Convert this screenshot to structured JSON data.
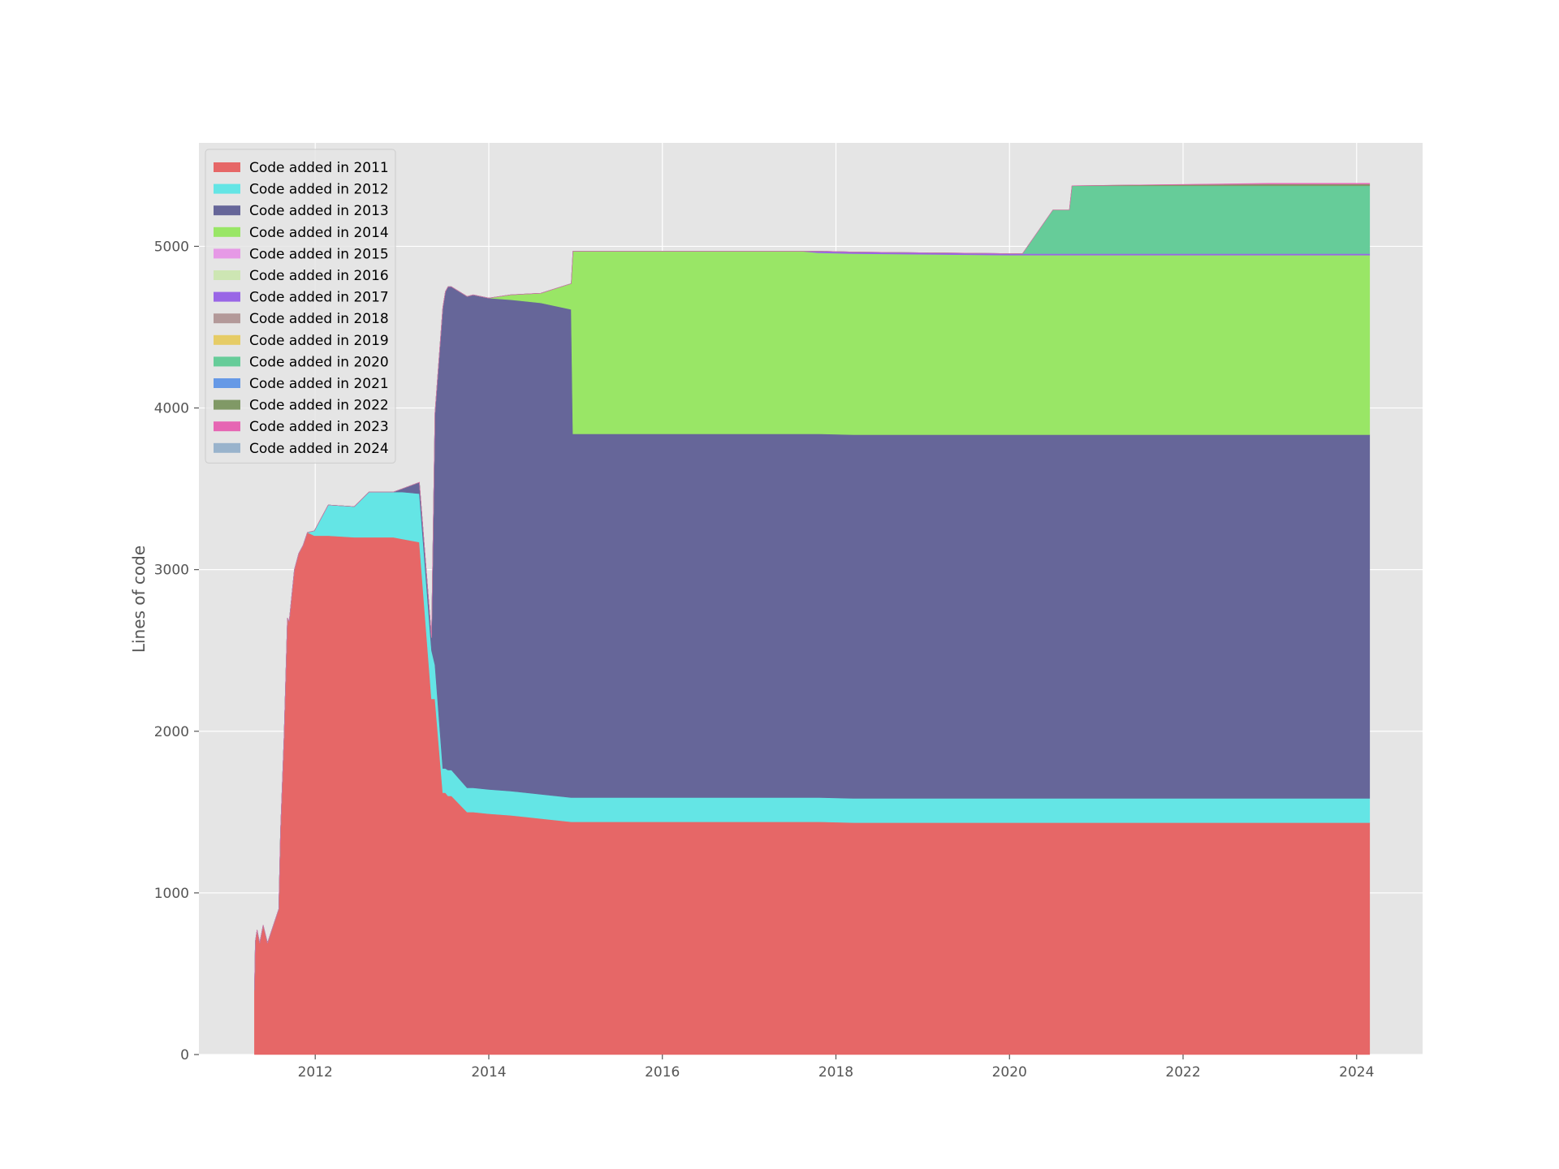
{
  "chart_data": {
    "type": "area",
    "stacked": true,
    "title": "",
    "xlabel": "",
    "ylabel": "Lines of code",
    "xlim": [
      2010.66,
      2024.76
    ],
    "ylim": [
      0,
      5640
    ],
    "xticks": [
      2012,
      2014,
      2016,
      2018,
      2020,
      2022,
      2024
    ],
    "xtick_labels": [
      "2012",
      "2014",
      "2016",
      "2018",
      "2020",
      "2022",
      "2024"
    ],
    "yticks": [
      0,
      1000,
      2000,
      3000,
      4000,
      5000
    ],
    "ytick_labels": [
      "0",
      "1000",
      "2000",
      "3000",
      "4000",
      "5000"
    ],
    "grid": true,
    "legend_position": "top-left",
    "background_color": "#e5e5e5",
    "x": [
      2011.3,
      2011.31,
      2011.33,
      2011.36,
      2011.4,
      2011.45,
      2011.58,
      2011.6,
      2011.64,
      2011.68,
      2011.7,
      2011.76,
      2011.81,
      2011.86,
      2011.91,
      2011.99,
      2012.15,
      2012.45,
      2012.62,
      2012.7,
      2012.9,
      2013.0,
      2013.2,
      2013.34,
      2013.38,
      2013.47,
      2013.5,
      2013.53,
      2013.57,
      2013.75,
      2013.82,
      2014.0,
      2014.25,
      2014.6,
      2014.95,
      2014.97,
      2016.0,
      2017.6,
      2017.8,
      2018.2,
      2020.0,
      2020.15,
      2020.5,
      2020.69,
      2020.72,
      2021.5,
      2023.0,
      2024.15
    ],
    "series": [
      {
        "name": "Code added in 2011",
        "color": "#e66767",
        "values": [
          400,
          700,
          770,
          690,
          800,
          690,
          900,
          1380,
          1950,
          2700,
          2680,
          3000,
          3100,
          3150,
          3230,
          3210,
          3210,
          3200,
          3200,
          3200,
          3200,
          3190,
          3170,
          2200,
          2200,
          1620,
          1620,
          1600,
          1600,
          1500,
          1500,
          1490,
          1480,
          1460,
          1440,
          1440,
          1440,
          1440,
          1440,
          1435,
          1435,
          1435,
          1435,
          1435,
          1435,
          1435,
          1435,
          1435
        ]
      },
      {
        "name": "Code added in 2012",
        "color": "#64e5e5",
        "values": [
          0,
          0,
          0,
          0,
          0,
          0,
          0,
          0,
          0,
          0,
          0,
          0,
          0,
          0,
          0,
          30,
          190,
          190,
          280,
          280,
          280,
          290,
          300,
          300,
          210,
          150,
          150,
          160,
          160,
          150,
          150,
          150,
          150,
          150,
          150,
          150,
          150,
          150,
          150,
          150,
          150,
          150,
          150,
          150,
          150,
          150,
          150,
          150
        ]
      },
      {
        "name": "Code added in 2013",
        "color": "#666699",
        "values": [
          0,
          0,
          0,
          0,
          0,
          0,
          0,
          0,
          0,
          0,
          0,
          0,
          0,
          0,
          0,
          0,
          0,
          0,
          0,
          0,
          0,
          20,
          70,
          80,
          1560,
          2850,
          2950,
          2990,
          2990,
          3040,
          3050,
          3040,
          3040,
          3040,
          3020,
          2250,
          2250,
          2250,
          2250,
          2250,
          2250,
          2250,
          2250,
          2250,
          2250,
          2250,
          2250,
          2250
        ]
      },
      {
        "name": "Code added in 2014",
        "color": "#99e666",
        "values": [
          0,
          0,
          0,
          0,
          0,
          0,
          0,
          0,
          0,
          0,
          0,
          0,
          0,
          0,
          0,
          0,
          0,
          0,
          0,
          0,
          0,
          0,
          0,
          0,
          0,
          0,
          0,
          0,
          0,
          0,
          0,
          0,
          30,
          60,
          160,
          1130,
          1130,
          1130,
          1120,
          1120,
          1110,
          1110,
          1110,
          1110,
          1110,
          1110,
          1110,
          1110
        ]
      },
      {
        "name": "Code added in 2015",
        "color": "#e699e6",
        "values": [
          0,
          0,
          0,
          0,
          0,
          0,
          0,
          0,
          0,
          0,
          0,
          0,
          0,
          0,
          0,
          0,
          0,
          0,
          0,
          0,
          0,
          0,
          0,
          0,
          0,
          0,
          0,
          0,
          0,
          0,
          0,
          0,
          0,
          0,
          0,
          0,
          0,
          0,
          0,
          0,
          0,
          0,
          0,
          0,
          0,
          0,
          0,
          0
        ]
      },
      {
        "name": "Code added in 2016",
        "color": "#cde6b3",
        "values": [
          0,
          0,
          0,
          0,
          0,
          0,
          0,
          0,
          0,
          0,
          0,
          0,
          0,
          0,
          0,
          0,
          0,
          0,
          0,
          0,
          0,
          0,
          0,
          0,
          0,
          0,
          0,
          0,
          0,
          0,
          0,
          0,
          0,
          0,
          0,
          0,
          0,
          0,
          0,
          0,
          0,
          0,
          0,
          0,
          0,
          0,
          0,
          0
        ]
      },
      {
        "name": "Code added in 2017",
        "color": "#9966e6",
        "values": [
          0,
          0,
          0,
          0,
          0,
          0,
          0,
          0,
          0,
          0,
          0,
          0,
          0,
          0,
          0,
          0,
          0,
          0,
          0,
          0,
          0,
          0,
          0,
          0,
          0,
          0,
          0,
          0,
          0,
          0,
          0,
          0,
          0,
          0,
          0,
          0,
          0,
          0,
          10,
          10,
          10,
          10,
          10,
          10,
          10,
          10,
          10,
          10
        ]
      },
      {
        "name": "Code added in 2018",
        "color": "#b39999",
        "values": [
          0,
          0,
          0,
          0,
          0,
          0,
          0,
          0,
          0,
          0,
          0,
          0,
          0,
          0,
          0,
          0,
          0,
          0,
          0,
          0,
          0,
          0,
          0,
          0,
          0,
          0,
          0,
          0,
          0,
          0,
          0,
          0,
          0,
          0,
          0,
          0,
          0,
          0,
          0,
          0,
          0,
          0,
          0,
          0,
          0,
          0,
          0,
          0
        ]
      },
      {
        "name": "Code added in 2019",
        "color": "#e6cc66",
        "values": [
          0,
          0,
          0,
          0,
          0,
          0,
          0,
          0,
          0,
          0,
          0,
          0,
          0,
          0,
          0,
          0,
          0,
          0,
          0,
          0,
          0,
          0,
          0,
          0,
          0,
          0,
          0,
          0,
          0,
          0,
          0,
          0,
          0,
          0,
          0,
          0,
          0,
          0,
          0,
          0,
          0,
          0,
          0,
          0,
          0,
          0,
          0,
          0
        ]
      },
      {
        "name": "Code added in 2020",
        "color": "#66cc99",
        "values": [
          0,
          0,
          0,
          0,
          0,
          0,
          0,
          0,
          0,
          0,
          0,
          0,
          0,
          0,
          0,
          0,
          0,
          0,
          0,
          0,
          0,
          0,
          0,
          0,
          0,
          0,
          0,
          0,
          0,
          0,
          0,
          0,
          0,
          0,
          0,
          0,
          0,
          0,
          0,
          0,
          0,
          0,
          270,
          270,
          420,
          420,
          420,
          420
        ]
      },
      {
        "name": "Code added in 2021",
        "color": "#6699e6",
        "values": [
          0,
          0,
          0,
          0,
          0,
          0,
          0,
          0,
          0,
          0,
          0,
          0,
          0,
          0,
          0,
          0,
          0,
          0,
          0,
          0,
          0,
          0,
          0,
          0,
          0,
          0,
          0,
          0,
          0,
          0,
          0,
          0,
          0,
          0,
          0,
          0,
          0,
          0,
          0,
          0,
          0,
          0,
          0,
          0,
          0,
          0,
          0,
          0
        ]
      },
      {
        "name": "Code added in 2022",
        "color": "#809966",
        "values": [
          0,
          0,
          0,
          0,
          0,
          0,
          0,
          0,
          0,
          0,
          0,
          0,
          0,
          0,
          0,
          0,
          0,
          0,
          0,
          0,
          0,
          0,
          0,
          0,
          0,
          0,
          0,
          0,
          0,
          0,
          0,
          0,
          0,
          0,
          0,
          0,
          0,
          0,
          0,
          0,
          0,
          0,
          0,
          0,
          0,
          5,
          10,
          10
        ]
      },
      {
        "name": "Code added in 2023",
        "color": "#e666b3",
        "values": [
          0,
          0,
          0,
          0,
          0,
          0,
          0,
          0,
          0,
          0,
          0,
          0,
          0,
          0,
          0,
          0,
          0,
          0,
          0,
          0,
          0,
          0,
          0,
          0,
          0,
          0,
          0,
          0,
          0,
          0,
          0,
          0,
          0,
          0,
          0,
          0,
          0,
          0,
          0,
          0,
          0,
          0,
          0,
          0,
          0,
          0,
          5,
          5
        ]
      },
      {
        "name": "Code added in 2024",
        "color": "#99b3cc",
        "values": [
          0,
          0,
          0,
          0,
          0,
          0,
          0,
          0,
          0,
          0,
          0,
          0,
          0,
          0,
          0,
          0,
          0,
          0,
          0,
          0,
          0,
          0,
          0,
          0,
          0,
          0,
          0,
          0,
          0,
          0,
          0,
          0,
          0,
          0,
          0,
          0,
          0,
          0,
          0,
          0,
          0,
          0,
          0,
          0,
          0,
          0,
          0,
          0
        ]
      }
    ]
  }
}
